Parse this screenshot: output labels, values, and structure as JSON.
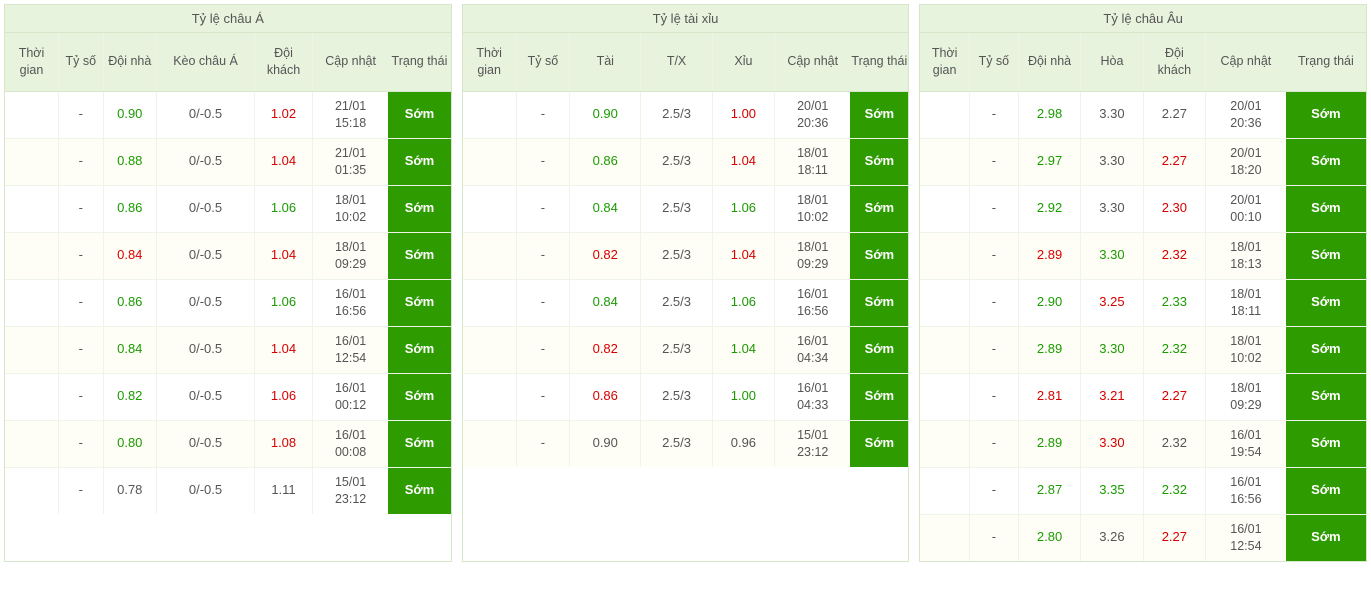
{
  "colors": {
    "header_bg": "#e8f3de",
    "border": "#d5e6c9",
    "row_alt_bg": "#fffef6",
    "badge_bg": "#2e9b00",
    "badge_fg": "#ffffff",
    "green": "#1a9b00",
    "red": "#d60000",
    "gray": "#555555"
  },
  "tables": [
    {
      "title": "Tỷ lệ châu Á",
      "colWidths": [
        "12%",
        "10%",
        "12%",
        "22%",
        "13%",
        "17%",
        "14%"
      ],
      "headers": [
        "Thời gian",
        "Tỷ số",
        "Đội nhà",
        "Kèo châu Á",
        "Đội khách",
        "Cập nhật",
        "Trạng thái"
      ],
      "rows": [
        {
          "c": [
            {
              "t": ""
            },
            {
              "t": "-"
            },
            {
              "t": "0.90",
              "cls": "c-green"
            },
            {
              "t": "0/-0.5"
            },
            {
              "t": "1.02",
              "cls": "c-red"
            },
            {
              "t": "21/01 15:18",
              "time": true
            }
          ],
          "badge": "Sớm"
        },
        {
          "c": [
            {
              "t": ""
            },
            {
              "t": "-"
            },
            {
              "t": "0.88",
              "cls": "c-green"
            },
            {
              "t": "0/-0.5"
            },
            {
              "t": "1.04",
              "cls": "c-red"
            },
            {
              "t": "21/01 01:35",
              "time": true
            }
          ],
          "badge": "Sớm"
        },
        {
          "c": [
            {
              "t": ""
            },
            {
              "t": "-"
            },
            {
              "t": "0.86",
              "cls": "c-green"
            },
            {
              "t": "0/-0.5"
            },
            {
              "t": "1.06",
              "cls": "c-green"
            },
            {
              "t": "18/01 10:02",
              "time": true
            }
          ],
          "badge": "Sớm"
        },
        {
          "c": [
            {
              "t": ""
            },
            {
              "t": "-"
            },
            {
              "t": "0.84",
              "cls": "c-red"
            },
            {
              "t": "0/-0.5"
            },
            {
              "t": "1.04",
              "cls": "c-red"
            },
            {
              "t": "18/01 09:29",
              "time": true
            }
          ],
          "badge": "Sớm"
        },
        {
          "c": [
            {
              "t": ""
            },
            {
              "t": "-"
            },
            {
              "t": "0.86",
              "cls": "c-green"
            },
            {
              "t": "0/-0.5"
            },
            {
              "t": "1.06",
              "cls": "c-green"
            },
            {
              "t": "16/01 16:56",
              "time": true
            }
          ],
          "badge": "Sớm"
        },
        {
          "c": [
            {
              "t": ""
            },
            {
              "t": "-"
            },
            {
              "t": "0.84",
              "cls": "c-green"
            },
            {
              "t": "0/-0.5"
            },
            {
              "t": "1.04",
              "cls": "c-red"
            },
            {
              "t": "16/01 12:54",
              "time": true
            }
          ],
          "badge": "Sớm"
        },
        {
          "c": [
            {
              "t": ""
            },
            {
              "t": "-"
            },
            {
              "t": "0.82",
              "cls": "c-green"
            },
            {
              "t": "0/-0.5"
            },
            {
              "t": "1.06",
              "cls": "c-red"
            },
            {
              "t": "16/01 00:12",
              "time": true
            }
          ],
          "badge": "Sớm"
        },
        {
          "c": [
            {
              "t": ""
            },
            {
              "t": "-"
            },
            {
              "t": "0.80",
              "cls": "c-green"
            },
            {
              "t": "0/-0.5"
            },
            {
              "t": "1.08",
              "cls": "c-red"
            },
            {
              "t": "16/01 00:08",
              "time": true
            }
          ],
          "badge": "Sớm"
        },
        {
          "c": [
            {
              "t": ""
            },
            {
              "t": "-"
            },
            {
              "t": "0.78",
              "cls": "c-gray"
            },
            {
              "t": "0/-0.5"
            },
            {
              "t": "1.11",
              "cls": "c-gray"
            },
            {
              "t": "15/01 23:12",
              "time": true
            }
          ],
          "badge": "Sớm"
        }
      ]
    },
    {
      "title": "Tỷ lệ tài xỉu",
      "colWidths": [
        "12%",
        "12%",
        "16%",
        "16%",
        "14%",
        "17%",
        "13%"
      ],
      "headers": [
        "Thời gian",
        "Tỷ số",
        "Tài",
        "T/X",
        "Xỉu",
        "Cập nhật",
        "Trạng thái"
      ],
      "rows": [
        {
          "c": [
            {
              "t": ""
            },
            {
              "t": "-"
            },
            {
              "t": "0.90",
              "cls": "c-green"
            },
            {
              "t": "2.5/3"
            },
            {
              "t": "1.00",
              "cls": "c-red"
            },
            {
              "t": "20/01 20:36",
              "time": true
            }
          ],
          "badge": "Sớm"
        },
        {
          "c": [
            {
              "t": ""
            },
            {
              "t": "-"
            },
            {
              "t": "0.86",
              "cls": "c-green"
            },
            {
              "t": "2.5/3"
            },
            {
              "t": "1.04",
              "cls": "c-red"
            },
            {
              "t": "18/01 18:11",
              "time": true
            }
          ],
          "badge": "Sớm"
        },
        {
          "c": [
            {
              "t": ""
            },
            {
              "t": "-"
            },
            {
              "t": "0.84",
              "cls": "c-green"
            },
            {
              "t": "2.5/3"
            },
            {
              "t": "1.06",
              "cls": "c-green"
            },
            {
              "t": "18/01 10:02",
              "time": true
            }
          ],
          "badge": "Sớm"
        },
        {
          "c": [
            {
              "t": ""
            },
            {
              "t": "-"
            },
            {
              "t": "0.82",
              "cls": "c-red"
            },
            {
              "t": "2.5/3"
            },
            {
              "t": "1.04",
              "cls": "c-red"
            },
            {
              "t": "18/01 09:29",
              "time": true
            }
          ],
          "badge": "Sớm"
        },
        {
          "c": [
            {
              "t": ""
            },
            {
              "t": "-"
            },
            {
              "t": "0.84",
              "cls": "c-green"
            },
            {
              "t": "2.5/3"
            },
            {
              "t": "1.06",
              "cls": "c-green"
            },
            {
              "t": "16/01 16:56",
              "time": true
            }
          ],
          "badge": "Sớm"
        },
        {
          "c": [
            {
              "t": ""
            },
            {
              "t": "-"
            },
            {
              "t": "0.82",
              "cls": "c-red"
            },
            {
              "t": "2.5/3"
            },
            {
              "t": "1.04",
              "cls": "c-green"
            },
            {
              "t": "16/01 04:34",
              "time": true
            }
          ],
          "badge": "Sớm"
        },
        {
          "c": [
            {
              "t": ""
            },
            {
              "t": "-"
            },
            {
              "t": "0.86",
              "cls": "c-red"
            },
            {
              "t": "2.5/3"
            },
            {
              "t": "1.00",
              "cls": "c-green"
            },
            {
              "t": "16/01 04:33",
              "time": true
            }
          ],
          "badge": "Sớm"
        },
        {
          "c": [
            {
              "t": ""
            },
            {
              "t": "-"
            },
            {
              "t": "0.90",
              "cls": "c-gray"
            },
            {
              "t": "2.5/3"
            },
            {
              "t": "0.96",
              "cls": "c-gray"
            },
            {
              "t": "15/01 23:12",
              "time": true
            }
          ],
          "badge": "Sớm"
        }
      ]
    },
    {
      "title": "Tỷ lệ châu Âu",
      "colWidths": [
        "11%",
        "11%",
        "14%",
        "14%",
        "14%",
        "18%",
        "18%"
      ],
      "headers": [
        "Thời gian",
        "Tỷ số",
        "Đội nhà",
        "Hòa",
        "Đội khách",
        "Cập nhật",
        "Trạng thái"
      ],
      "rows": [
        {
          "c": [
            {
              "t": ""
            },
            {
              "t": "-"
            },
            {
              "t": "2.98",
              "cls": "c-green"
            },
            {
              "t": "3.30",
              "cls": "c-gray"
            },
            {
              "t": "2.27",
              "cls": "c-gray"
            },
            {
              "t": "20/01 20:36",
              "time": true
            }
          ],
          "badge": "Sớm"
        },
        {
          "c": [
            {
              "t": ""
            },
            {
              "t": "-"
            },
            {
              "t": "2.97",
              "cls": "c-green"
            },
            {
              "t": "3.30",
              "cls": "c-gray"
            },
            {
              "t": "2.27",
              "cls": "c-red"
            },
            {
              "t": "20/01 18:20",
              "time": true
            }
          ],
          "badge": "Sớm"
        },
        {
          "c": [
            {
              "t": ""
            },
            {
              "t": "-"
            },
            {
              "t": "2.92",
              "cls": "c-green"
            },
            {
              "t": "3.30",
              "cls": "c-gray"
            },
            {
              "t": "2.30",
              "cls": "c-red"
            },
            {
              "t": "20/01 00:10",
              "time": true
            }
          ],
          "badge": "Sớm"
        },
        {
          "c": [
            {
              "t": ""
            },
            {
              "t": "-"
            },
            {
              "t": "2.89",
              "cls": "c-red"
            },
            {
              "t": "3.30",
              "cls": "c-green"
            },
            {
              "t": "2.32",
              "cls": "c-red"
            },
            {
              "t": "18/01 18:13",
              "time": true
            }
          ],
          "badge": "Sớm"
        },
        {
          "c": [
            {
              "t": ""
            },
            {
              "t": "-"
            },
            {
              "t": "2.90",
              "cls": "c-green"
            },
            {
              "t": "3.25",
              "cls": "c-red"
            },
            {
              "t": "2.33",
              "cls": "c-green"
            },
            {
              "t": "18/01 18:11",
              "time": true
            }
          ],
          "badge": "Sớm"
        },
        {
          "c": [
            {
              "t": ""
            },
            {
              "t": "-"
            },
            {
              "t": "2.89",
              "cls": "c-green"
            },
            {
              "t": "3.30",
              "cls": "c-green"
            },
            {
              "t": "2.32",
              "cls": "c-green"
            },
            {
              "t": "18/01 10:02",
              "time": true
            }
          ],
          "badge": "Sớm"
        },
        {
          "c": [
            {
              "t": ""
            },
            {
              "t": "-"
            },
            {
              "t": "2.81",
              "cls": "c-red"
            },
            {
              "t": "3.21",
              "cls": "c-red"
            },
            {
              "t": "2.27",
              "cls": "c-red"
            },
            {
              "t": "18/01 09:29",
              "time": true
            }
          ],
          "badge": "Sớm"
        },
        {
          "c": [
            {
              "t": ""
            },
            {
              "t": "-"
            },
            {
              "t": "2.89",
              "cls": "c-green"
            },
            {
              "t": "3.30",
              "cls": "c-red"
            },
            {
              "t": "2.32",
              "cls": "c-gray"
            },
            {
              "t": "16/01 19:54",
              "time": true
            }
          ],
          "badge": "Sớm"
        },
        {
          "c": [
            {
              "t": ""
            },
            {
              "t": "-"
            },
            {
              "t": "2.87",
              "cls": "c-green"
            },
            {
              "t": "3.35",
              "cls": "c-green"
            },
            {
              "t": "2.32",
              "cls": "c-green"
            },
            {
              "t": "16/01 16:56",
              "time": true
            }
          ],
          "badge": "Sớm"
        },
        {
          "c": [
            {
              "t": ""
            },
            {
              "t": "-"
            },
            {
              "t": "2.80",
              "cls": "c-green"
            },
            {
              "t": "3.26",
              "cls": "c-gray"
            },
            {
              "t": "2.27",
              "cls": "c-red"
            },
            {
              "t": "16/01 12:54",
              "time": true
            }
          ],
          "badge": "Sớm"
        }
      ]
    }
  ]
}
